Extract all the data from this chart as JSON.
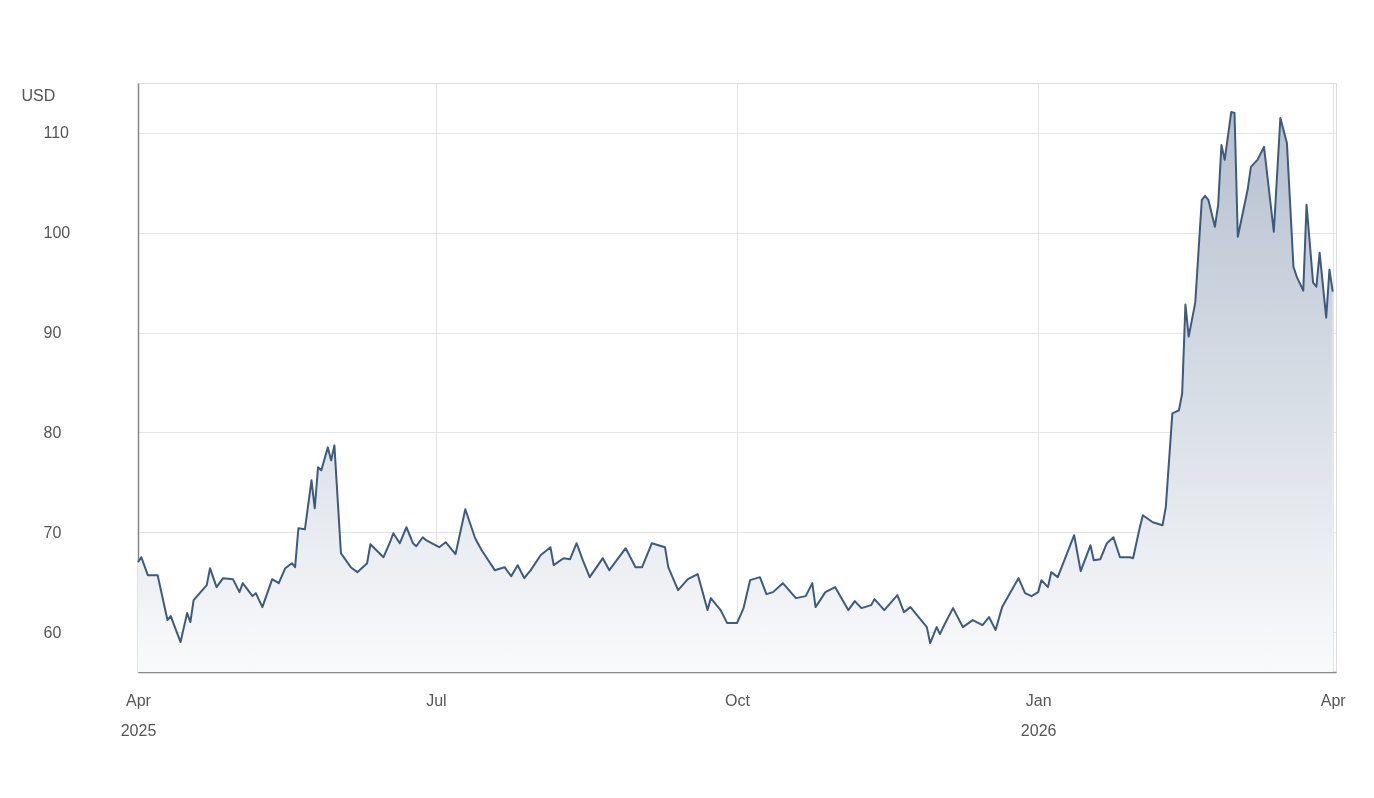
{
  "chart_data": {
    "type": "area",
    "ylabel": "USD",
    "x": [
      "2025-04-01",
      "2025-04-02",
      "2025-04-04",
      "2025-04-07",
      "2025-04-10",
      "2025-04-11",
      "2025-04-14",
      "2025-04-16",
      "2025-04-17",
      "2025-04-18",
      "2025-04-22",
      "2025-04-23",
      "2025-04-25",
      "2025-04-27",
      "2025-04-30",
      "2025-05-02",
      "2025-05-03",
      "2025-05-06",
      "2025-05-07",
      "2025-05-09",
      "2025-05-12",
      "2025-05-14",
      "2025-05-16",
      "2025-05-18",
      "2025-05-19",
      "2025-05-20",
      "2025-05-22",
      "2025-05-24",
      "2025-05-25",
      "2025-05-26",
      "2025-05-27",
      "2025-05-29",
      "2025-05-30",
      "2025-05-31",
      "2025-06-02",
      "2025-06-05",
      "2025-06-07",
      "2025-06-10",
      "2025-06-11",
      "2025-06-15",
      "2025-06-17",
      "2025-06-18",
      "2025-06-20",
      "2025-06-22",
      "2025-06-24",
      "2025-06-25",
      "2025-06-27",
      "2025-06-28",
      "2025-07-02",
      "2025-07-04",
      "2025-07-07",
      "2025-07-10",
      "2025-07-13",
      "2025-07-15",
      "2025-07-19",
      "2025-07-22",
      "2025-07-24",
      "2025-07-26",
      "2025-07-28",
      "2025-07-30",
      "2025-08-02",
      "2025-08-05",
      "2025-08-06",
      "2025-08-09",
      "2025-08-11",
      "2025-08-13",
      "2025-08-15",
      "2025-08-17",
      "2025-08-21",
      "2025-08-23",
      "2025-08-28",
      "2025-08-31",
      "2025-09-02",
      "2025-09-05",
      "2025-09-09",
      "2025-09-10",
      "2025-09-13",
      "2025-09-16",
      "2025-09-19",
      "2025-09-22",
      "2025-09-23",
      "2025-09-26",
      "2025-09-28",
      "2025-10-01",
      "2025-10-03",
      "2025-10-05",
      "2025-10-08",
      "2025-10-10",
      "2025-10-12",
      "2025-10-15",
      "2025-10-19",
      "2025-10-22",
      "2025-10-24",
      "2025-10-25",
      "2025-10-28",
      "2025-10-31",
      "2025-11-04",
      "2025-11-06",
      "2025-11-08",
      "2025-11-11",
      "2025-11-12",
      "2025-11-15",
      "2025-11-19",
      "2025-11-21",
      "2025-11-23",
      "2025-11-28",
      "2025-11-29",
      "2025-12-01",
      "2025-12-02",
      "2025-12-03",
      "2025-12-06",
      "2025-12-09",
      "2025-12-12",
      "2025-12-15",
      "2025-12-17",
      "2025-12-19",
      "2025-12-21",
      "2025-12-26",
      "2025-12-28",
      "2025-12-30",
      "2026-01-01",
      "2026-01-02",
      "2026-01-04",
      "2026-01-05",
      "2026-01-07",
      "2026-01-12",
      "2026-01-14",
      "2026-01-17",
      "2026-01-18",
      "2026-01-20",
      "2026-01-22",
      "2026-01-24",
      "2026-01-26",
      "2026-01-29",
      "2026-01-30",
      "2026-02-01",
      "2026-02-02",
      "2026-02-05",
      "2026-02-08",
      "2026-02-09",
      "2026-02-11",
      "2026-02-13",
      "2026-02-14",
      "2026-02-15",
      "2026-02-16",
      "2026-02-18",
      "2026-02-20",
      "2026-02-21",
      "2026-02-22",
      "2026-02-24",
      "2026-02-25",
      "2026-02-26",
      "2026-02-27",
      "2026-03-01",
      "2026-03-02",
      "2026-03-03",
      "2026-03-06",
      "2026-03-07",
      "2026-03-09",
      "2026-03-11",
      "2026-03-14",
      "2026-03-16",
      "2026-03-18",
      "2026-03-20",
      "2026-03-21",
      "2026-03-23",
      "2026-03-24",
      "2026-03-26",
      "2026-03-27",
      "2026-03-28",
      "2026-03-30",
      "2026-03-31",
      "2026-04-01"
    ],
    "series": [
      {
        "color": "#3d5a80",
        "values": [
          67.0,
          67.5,
          65.7,
          65.7,
          61.2,
          61.6,
          59.0,
          61.9,
          61.0,
          63.2,
          64.7,
          66.4,
          64.5,
          65.4,
          65.3,
          64.0,
          64.9,
          63.6,
          63.9,
          62.5,
          65.3,
          64.9,
          66.4,
          66.9,
          66.5,
          70.4,
          70.3,
          75.2,
          72.4,
          76.5,
          76.2,
          78.5,
          77.2,
          78.7,
          67.9,
          66.5,
          66.0,
          66.9,
          68.8,
          67.5,
          69.0,
          69.9,
          68.9,
          70.5,
          68.9,
          68.6,
          69.5,
          69.2,
          68.5,
          69.0,
          67.8,
          72.3,
          69.4,
          68.2,
          66.2,
          66.5,
          65.6,
          66.7,
          65.4,
          66.2,
          67.7,
          68.5,
          66.7,
          67.4,
          67.3,
          68.9,
          67.1,
          65.5,
          67.4,
          66.2,
          68.4,
          66.5,
          66.5,
          68.9,
          68.5,
          66.5,
          64.2,
          65.3,
          65.8,
          62.2,
          63.4,
          62.2,
          60.9,
          60.9,
          62.4,
          65.2,
          65.5,
          63.8,
          64.0,
          64.9,
          63.4,
          63.6,
          64.9,
          62.5,
          64.0,
          64.5,
          62.2,
          63.1,
          62.4,
          62.7,
          63.3,
          62.2,
          63.7,
          62.0,
          62.5,
          60.5,
          58.9,
          60.5,
          59.8,
          60.5,
          62.4,
          60.5,
          61.2,
          60.7,
          61.5,
          60.2,
          62.5,
          65.4,
          63.9,
          63.6,
          64.0,
          65.2,
          64.5,
          66.0,
          65.5,
          69.7,
          66.1,
          68.7,
          67.2,
          67.3,
          68.9,
          69.5,
          67.5,
          67.5,
          67.4,
          70.4,
          71.7,
          71.0,
          70.7,
          72.5,
          81.9,
          82.2,
          83.9,
          92.8,
          89.6,
          93.0,
          103.3,
          103.7,
          103.3,
          100.6,
          102.8,
          108.8,
          107.3,
          112.1,
          112.0,
          99.6,
          104.3,
          106.6,
          107.3,
          108.6,
          100.1,
          111.5,
          109.0,
          96.6,
          95.6,
          94.2,
          102.8,
          95.0,
          94.6,
          98.0,
          91.5,
          96.3,
          94.1
        ]
      }
    ],
    "xlim": [
      "2025-04-01",
      "2026-04-02"
    ],
    "xticks": [
      {
        "value": "2025-04-01",
        "label": "Apr 2025"
      },
      {
        "value": "2025-07-01",
        "label": "Jul"
      },
      {
        "value": "2025-10-01",
        "label": "Oct"
      },
      {
        "value": "2026-01-01",
        "label": "Jan 2026"
      },
      {
        "value": "2026-04-01",
        "label": "Apr"
      }
    ],
    "ylim": [
      56,
      115
    ],
    "yticks": [
      60,
      70,
      80,
      90,
      100,
      110
    ],
    "grid": true
  }
}
